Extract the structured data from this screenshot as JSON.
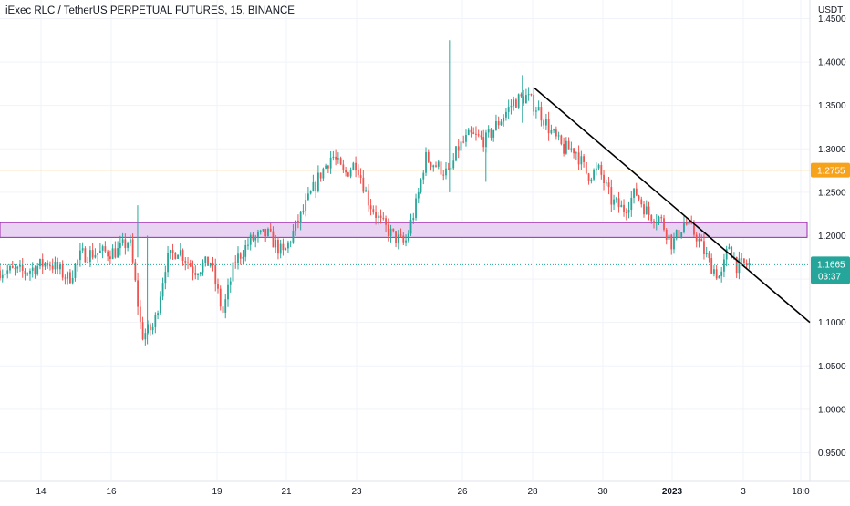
{
  "header": {
    "title": "iExec RLC / TetherUS PERPETUAL FUTURES, 15, BINANCE"
  },
  "colors": {
    "up": "#26a69a",
    "down": "#ef5350",
    "horizontal_line": "#f7a21b",
    "zone_fill": "#e9d3f2",
    "zone_border": "#9c27b0",
    "trend_line": "#000000",
    "last_price_line": "#26a69a"
  },
  "chart_data": {
    "type": "candlestick",
    "interval": "15",
    "y_axis": {
      "unit": "USDT",
      "ylim": [
        0.92,
        1.48
      ],
      "ticks": [
        "1.4500",
        "1.4000",
        "1.3500",
        "1.3000",
        "1.2500",
        "1.2000",
        "1.1500",
        "1.1000",
        "1.0500",
        "1.0000",
        "0.9500"
      ]
    },
    "x_axis": {
      "ticks": [
        "14",
        "16",
        "19",
        "21",
        "23",
        "26",
        "28",
        "30",
        "2023",
        "3",
        "18:0"
      ]
    },
    "price_path": [
      [
        0.0,
        1.16
      ],
      [
        0.03,
        1.158
      ],
      [
        0.06,
        1.17
      ],
      [
        0.085,
        1.15
      ],
      [
        0.1,
        1.178
      ],
      [
        0.12,
        1.18
      ],
      [
        0.145,
        1.182
      ],
      [
        0.16,
        1.195
      ],
      [
        0.165,
        1.16
      ],
      [
        0.175,
        1.085
      ],
      [
        0.19,
        1.095
      ],
      [
        0.205,
        1.17
      ],
      [
        0.22,
        1.185
      ],
      [
        0.24,
        1.16
      ],
      [
        0.26,
        1.17
      ],
      [
        0.275,
        1.11
      ],
      [
        0.29,
        1.17
      ],
      [
        0.31,
        1.195
      ],
      [
        0.33,
        1.202
      ],
      [
        0.35,
        1.178
      ],
      [
        0.365,
        1.21
      ],
      [
        0.38,
        1.24
      ],
      [
        0.395,
        1.27
      ],
      [
        0.41,
        1.293
      ],
      [
        0.425,
        1.27
      ],
      [
        0.44,
        1.285
      ],
      [
        0.455,
        1.24
      ],
      [
        0.47,
        1.215
      ],
      [
        0.485,
        1.2
      ],
      [
        0.5,
        1.19
      ],
      [
        0.515,
        1.24
      ],
      [
        0.525,
        1.29
      ],
      [
        0.54,
        1.28
      ],
      [
        0.555,
        1.27
      ],
      [
        0.565,
        1.3
      ],
      [
        0.58,
        1.315
      ],
      [
        0.6,
        1.31
      ],
      [
        0.615,
        1.33
      ],
      [
        0.635,
        1.355
      ],
      [
        0.65,
        1.36
      ],
      [
        0.665,
        1.345
      ],
      [
        0.68,
        1.32
      ],
      [
        0.695,
        1.3
      ],
      [
        0.71,
        1.3
      ],
      [
        0.725,
        1.27
      ],
      [
        0.74,
        1.275
      ],
      [
        0.755,
        1.24
      ],
      [
        0.77,
        1.23
      ],
      [
        0.785,
        1.25
      ],
      [
        0.8,
        1.225
      ],
      [
        0.815,
        1.22
      ],
      [
        0.83,
        1.19
      ],
      [
        0.845,
        1.215
      ],
      [
        0.86,
        1.2
      ],
      [
        0.875,
        1.17
      ],
      [
        0.89,
        1.15
      ],
      [
        0.9,
        1.19
      ],
      [
        0.91,
        1.165
      ],
      [
        0.925,
        1.1665
      ]
    ],
    "spikes": [
      {
        "x": 0.555,
        "high": 1.425,
        "low": 1.25
      },
      {
        "x": 0.182,
        "high": 1.2,
        "low": 1.075
      },
      {
        "x": 0.17,
        "high": 1.235,
        "low": 1.175
      },
      {
        "x": 0.6,
        "high": 1.3,
        "low": 1.262
      },
      {
        "x": 0.645,
        "high": 1.385,
        "low": 1.33
      }
    ],
    "horizontal_line": {
      "price": 1.2755,
      "label": "1.2755"
    },
    "zone": {
      "top": 1.215,
      "bottom": 1.198
    },
    "trend_line": {
      "from": [
        0.66,
        1.37
      ],
      "to": [
        1.0,
        1.1
      ]
    },
    "last_price": {
      "price": 1.1665,
      "label": "1.1665",
      "countdown": "03:37"
    }
  }
}
